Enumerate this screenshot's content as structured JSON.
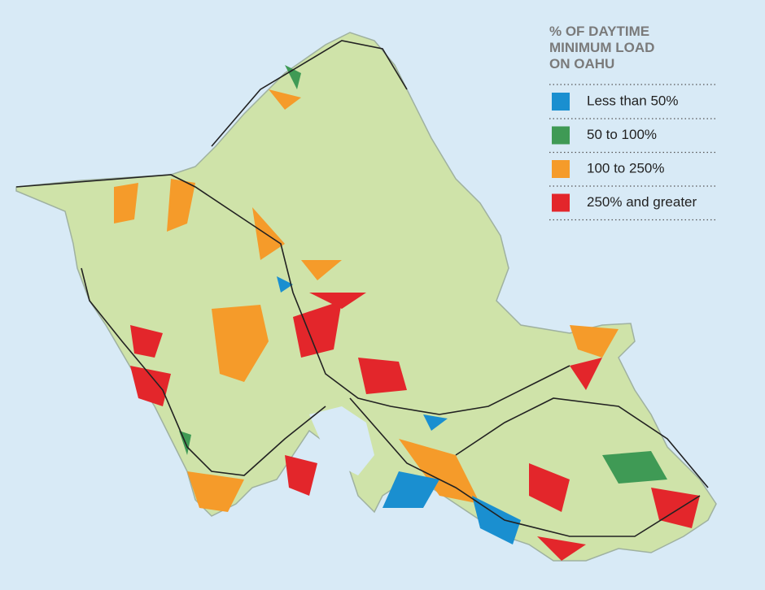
{
  "legend": {
    "title": [
      "% OF DAYTIME",
      "MINIMUM LOAD",
      "ON OAHU"
    ],
    "items": [
      {
        "label": "Less than 50%",
        "color": "#1a8fd0"
      },
      {
        "label": "50 to 100%",
        "color": "#3f9a55"
      },
      {
        "label": "100 to 250%",
        "color": "#f59b2a"
      },
      {
        "label": "250% and greater",
        "color": "#e3262b"
      }
    ]
  }
}
